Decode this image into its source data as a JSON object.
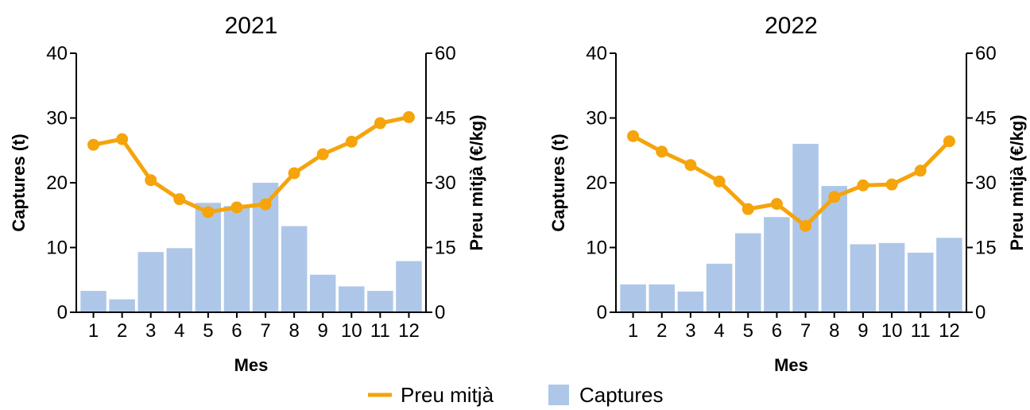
{
  "legend": {
    "line_label": "Preu mitjà",
    "bar_label": "Captures"
  },
  "colors": {
    "bar": "#aec7e8",
    "line": "#f5a40c",
    "axis": "#000000"
  },
  "chart_data": [
    {
      "type": "bar",
      "title": "2021",
      "xlabel": "Mes",
      "ylabel": "Captures (t)",
      "y2label": "Preu mitjà (€/kg)",
      "categories": [
        "1",
        "2",
        "3",
        "4",
        "5",
        "6",
        "7",
        "8",
        "9",
        "10",
        "11",
        "12"
      ],
      "ylim": [
        0,
        40
      ],
      "y2lim": [
        0,
        60
      ],
      "yticks": [
        0,
        10,
        20,
        30,
        40
      ],
      "y2ticks": [
        0,
        15,
        30,
        45,
        60
      ],
      "series": [
        {
          "name": "Captures",
          "type": "bar",
          "axis": "left",
          "values": [
            3.3,
            2.0,
            9.3,
            9.9,
            16.9,
            16.4,
            20.0,
            13.3,
            5.8,
            4.0,
            3.3,
            7.9
          ]
        },
        {
          "name": "Preu mitjà",
          "type": "line",
          "axis": "right",
          "values": [
            38.8,
            40.1,
            30.6,
            26.2,
            23.2,
            24.3,
            25.0,
            32.2,
            36.6,
            39.5,
            43.8,
            45.2
          ]
        }
      ]
    },
    {
      "type": "bar",
      "title": "2022",
      "xlabel": "Mes",
      "ylabel": "Captures (t)",
      "y2label": "Preu mitjà (€/kg)",
      "categories": [
        "1",
        "2",
        "3",
        "4",
        "5",
        "6",
        "7",
        "8",
        "9",
        "10",
        "11",
        "12"
      ],
      "ylim": [
        0,
        40
      ],
      "y2lim": [
        0,
        60
      ],
      "yticks": [
        0,
        10,
        20,
        30,
        40
      ],
      "y2ticks": [
        0,
        15,
        30,
        45,
        60
      ],
      "series": [
        {
          "name": "Captures",
          "type": "bar",
          "axis": "left",
          "values": [
            4.3,
            4.3,
            3.2,
            7.5,
            12.2,
            14.7,
            26.0,
            19.5,
            10.5,
            10.7,
            9.2,
            11.5
          ]
        },
        {
          "name": "Preu mitjà",
          "type": "line",
          "axis": "right",
          "values": [
            40.8,
            37.2,
            34.1,
            30.3,
            23.9,
            25.1,
            20.0,
            26.7,
            29.4,
            29.6,
            32.8,
            39.6
          ]
        }
      ]
    }
  ]
}
